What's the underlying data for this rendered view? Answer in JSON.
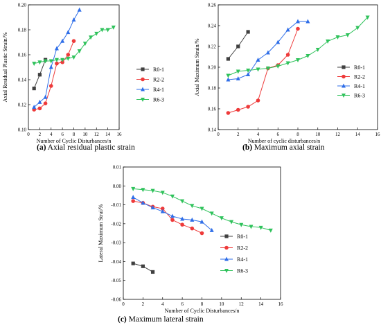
{
  "chart_data": [
    {
      "type": "line",
      "caption": {
        "letter": "(a)",
        "text": " Axial residual plastic strain"
      },
      "xlabel": "Number of Cyclic Disturbances/n",
      "ylabel": "Axial Residual Plastic Strain/%",
      "xlim": [
        0,
        16
      ],
      "ylim": [
        0.1,
        0.2
      ],
      "xticks": [
        "0",
        "2",
        "4",
        "6",
        "8",
        "10",
        "12",
        "14",
        "16"
      ],
      "yticks": [
        "0.10",
        "0.12",
        "0.14",
        "0.16",
        "0.18",
        "0.20"
      ],
      "legend_position": "right-middle",
      "series": [
        {
          "name": "R0-1",
          "color": "#404040",
          "marker": "square",
          "x": [
            1,
            2,
            3
          ],
          "y": [
            0.133,
            0.144,
            0.156
          ]
        },
        {
          "name": "R2-2",
          "color": "#ee3a3a",
          "marker": "circle",
          "x": [
            1,
            2,
            3,
            4,
            5,
            6,
            7,
            8
          ],
          "y": [
            0.116,
            0.117,
            0.121,
            0.135,
            0.153,
            0.154,
            0.16,
            0.171
          ]
        },
        {
          "name": "R4-1",
          "color": "#2f6ee8",
          "marker": "triangle-up",
          "x": [
            1,
            2,
            3,
            4,
            5,
            6,
            7,
            8,
            9
          ],
          "y": [
            0.118,
            0.122,
            0.126,
            0.15,
            0.165,
            0.171,
            0.178,
            0.188,
            0.196
          ]
        },
        {
          "name": "R6-3",
          "color": "#2fc25b",
          "marker": "triangle-down",
          "x": [
            1,
            2,
            3,
            4,
            5,
            6,
            7,
            8,
            9,
            10,
            11,
            12,
            13,
            14,
            15
          ],
          "y": [
            0.153,
            0.154,
            0.155,
            0.155,
            0.156,
            0.156,
            0.157,
            0.158,
            0.163,
            0.169,
            0.174,
            0.177,
            0.18,
            0.18,
            0.182
          ]
        }
      ]
    },
    {
      "type": "line",
      "caption": {
        "letter": "(b)",
        "text": " Maximum axial strain"
      },
      "xlabel": "Number of cyclic disturbances/n",
      "ylabel": "Axial Maximum Strain/%",
      "xlim": [
        0,
        16
      ],
      "ylim": [
        0.14,
        0.26
      ],
      "xticks": [
        "0",
        "2",
        "4",
        "6",
        "8",
        "10",
        "12",
        "14",
        "16"
      ],
      "yticks": [
        "0.14",
        "0.16",
        "0.18",
        "0.20",
        "0.22",
        "0.24",
        "0.26"
      ],
      "legend_position": "right-middle",
      "series": [
        {
          "name": "R0-1",
          "color": "#404040",
          "marker": "square",
          "x": [
            1,
            2,
            3
          ],
          "y": [
            0.208,
            0.22,
            0.234
          ]
        },
        {
          "name": "R2-2",
          "color": "#ee3a3a",
          "marker": "circle",
          "x": [
            1,
            2,
            3,
            4,
            5,
            6,
            7,
            8
          ],
          "y": [
            0.156,
            0.159,
            0.162,
            0.168,
            0.199,
            0.202,
            0.212,
            0.237
          ]
        },
        {
          "name": "R4-1",
          "color": "#2f6ee8",
          "marker": "triangle-up",
          "x": [
            1,
            2,
            3,
            4,
            5,
            6,
            7,
            8,
            9
          ],
          "y": [
            0.188,
            0.189,
            0.193,
            0.207,
            0.214,
            0.224,
            0.236,
            0.244,
            0.244
          ]
        },
        {
          "name": "R6-3",
          "color": "#2fc25b",
          "marker": "triangle-down",
          "x": [
            1,
            2,
            3,
            4,
            5,
            6,
            7,
            8,
            9,
            10,
            11,
            12,
            13,
            14,
            15
          ],
          "y": [
            0.192,
            0.196,
            0.197,
            0.198,
            0.199,
            0.201,
            0.204,
            0.207,
            0.211,
            0.217,
            0.225,
            0.229,
            0.231,
            0.238,
            0.248
          ]
        }
      ]
    },
    {
      "type": "line",
      "caption": {
        "letter": "(c)",
        "text": " Maximum lateral strain"
      },
      "xlabel": "Number of Cyclic Disturbances/n",
      "ylabel": "Lateral Maximum Strai/%",
      "xlim": [
        0,
        16
      ],
      "ylim": [
        -0.06,
        0.01
      ],
      "xticks": [
        "0",
        "2",
        "4",
        "6",
        "8",
        "10",
        "12",
        "14",
        "16"
      ],
      "yticks": [
        "-0.06",
        "-0.05",
        "-0.04",
        "-0.03",
        "-0.02",
        "-0.01",
        "0.00",
        "0.01"
      ],
      "legend_position": "middle",
      "series": [
        {
          "name": "R0-1",
          "color": "#404040",
          "marker": "square",
          "x": [
            1,
            2,
            3
          ],
          "y": [
            -0.041,
            -0.0425,
            -0.0455
          ]
        },
        {
          "name": "R2-2",
          "color": "#ee3a3a",
          "marker": "circle",
          "x": [
            1,
            2,
            3,
            4,
            5,
            6,
            7,
            8
          ],
          "y": [
            -0.008,
            -0.009,
            -0.011,
            -0.012,
            -0.018,
            -0.0205,
            -0.0225,
            -0.025
          ]
        },
        {
          "name": "R4-1",
          "color": "#2f6ee8",
          "marker": "triangle-up",
          "x": [
            1,
            2,
            3,
            4,
            5,
            6,
            7,
            8,
            9
          ],
          "y": [
            -0.006,
            -0.009,
            -0.0115,
            -0.0135,
            -0.016,
            -0.0175,
            -0.018,
            -0.019,
            -0.0235
          ]
        },
        {
          "name": "R6-3",
          "color": "#2fc25b",
          "marker": "triangle-down",
          "x": [
            1,
            2,
            3,
            4,
            5,
            6,
            7,
            8,
            9,
            10,
            11,
            12,
            13,
            14,
            15
          ],
          "y": [
            -0.0015,
            -0.002,
            -0.0025,
            -0.0035,
            -0.0055,
            -0.008,
            -0.0105,
            -0.012,
            -0.0145,
            -0.017,
            -0.019,
            -0.0205,
            -0.0215,
            -0.022,
            -0.0235
          ]
        }
      ]
    }
  ]
}
